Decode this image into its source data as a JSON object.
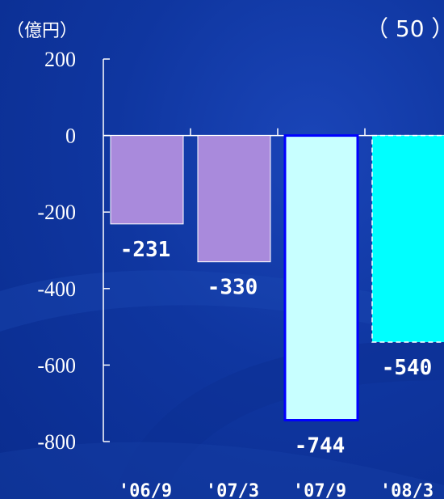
{
  "unit_label": "（億円）",
  "annotation": "（ 50 ）",
  "colors": {
    "bar_purple": "#a98adc",
    "bar_light_cyan": "#c8ffff",
    "bar_cyan": "#00ffff",
    "bar_border_blue": "#0000ff",
    "axis": "#ffffff",
    "text": "#ffffff"
  },
  "chart_data": {
    "type": "bar",
    "categories": [
      "'06/9",
      "'07/3",
      "'07/9",
      "'08/3"
    ],
    "values": [
      -231,
      -330,
      -744,
      -540
    ],
    "data_labels": [
      "-231",
      "-330",
      "-744",
      "-540"
    ],
    "bar_colors": [
      "#a98adc",
      "#a98adc",
      "#c8ffff",
      "#00ffff"
    ],
    "bar_styles": [
      "solid",
      "solid",
      "solid-blue-border",
      "dashed-white-border"
    ],
    "yticks": [
      "200",
      "0",
      "-200",
      "-400",
      "-600",
      "-800"
    ],
    "ylim": [
      -800,
      200
    ],
    "grid": false,
    "title": "",
    "xlabel": "",
    "ylabel": ""
  }
}
